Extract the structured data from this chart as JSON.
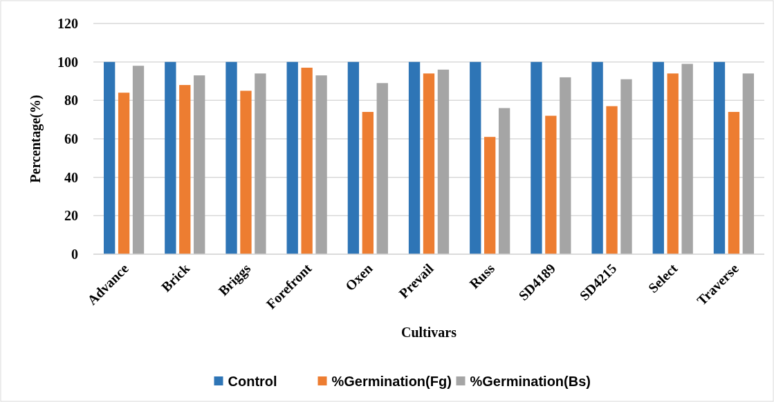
{
  "chart_data": {
    "type": "bar",
    "xlabel": "Cultivars",
    "ylabel": "Percentage(%)",
    "categories": [
      "Advance",
      "Brick",
      "Briggs",
      "Forefront",
      "Oxen",
      "Prevail",
      "Russ",
      "SD4189",
      "SD4215",
      "Select",
      "Traverse"
    ],
    "series": [
      {
        "name": "Control",
        "color": "#2e75b6",
        "values": [
          100,
          100,
          100,
          100,
          100,
          100,
          100,
          100,
          100,
          100,
          100
        ]
      },
      {
        "name": "%Germination(Fg)",
        "color": "#ed7d31",
        "values": [
          84,
          88,
          85,
          97,
          74,
          94,
          61,
          72,
          77,
          94,
          74
        ]
      },
      {
        "name": "%Germination(Bs)",
        "color": "#a5a5a5",
        "values": [
          98,
          93,
          94,
          93,
          89,
          96,
          76,
          92,
          91,
          99,
          94
        ]
      }
    ],
    "ylim": [
      0,
      120
    ],
    "yticks": [
      0,
      20,
      40,
      60,
      80,
      100,
      120
    ],
    "grid": "y",
    "legend": "bottom"
  }
}
